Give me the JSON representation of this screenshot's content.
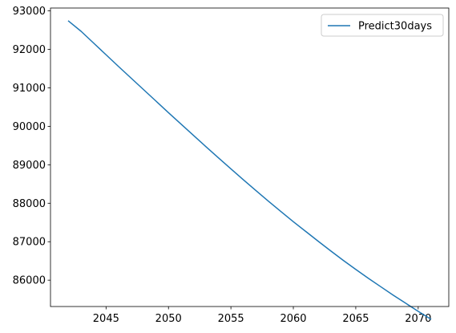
{
  "chart_data": {
    "type": "line",
    "title": "",
    "xlabel": "",
    "ylabel": "",
    "xlim": [
      2040.55,
      2072.45
    ],
    "ylim": [
      85315,
      93075
    ],
    "x_ticks": [
      2045,
      2050,
      2055,
      2060,
      2065,
      2070
    ],
    "y_ticks": [
      86000,
      87000,
      88000,
      89000,
      90000,
      91000,
      92000,
      93000
    ],
    "grid": false,
    "legend_position": "top-right",
    "colors": {
      "series": "#1f77b4"
    },
    "series": [
      {
        "name": "Predict30days",
        "x": [
          2042,
          2043,
          2044,
          2045,
          2046,
          2047,
          2048,
          2049,
          2050,
          2051,
          2052,
          2053,
          2054,
          2055,
          2056,
          2057,
          2058,
          2059,
          2060,
          2061,
          2062,
          2063,
          2064,
          2065,
          2066,
          2067,
          2068,
          2069,
          2070,
          2071
        ],
        "values": [
          92735,
          92470,
          92165,
          91860,
          91555,
          91255,
          90955,
          90655,
          90355,
          90060,
          89765,
          89470,
          89180,
          88895,
          88610,
          88330,
          88055,
          87785,
          87520,
          87265,
          87010,
          86760,
          86515,
          86280,
          86050,
          85830,
          85610,
          85400,
          85190,
          84990
        ]
      }
    ]
  }
}
